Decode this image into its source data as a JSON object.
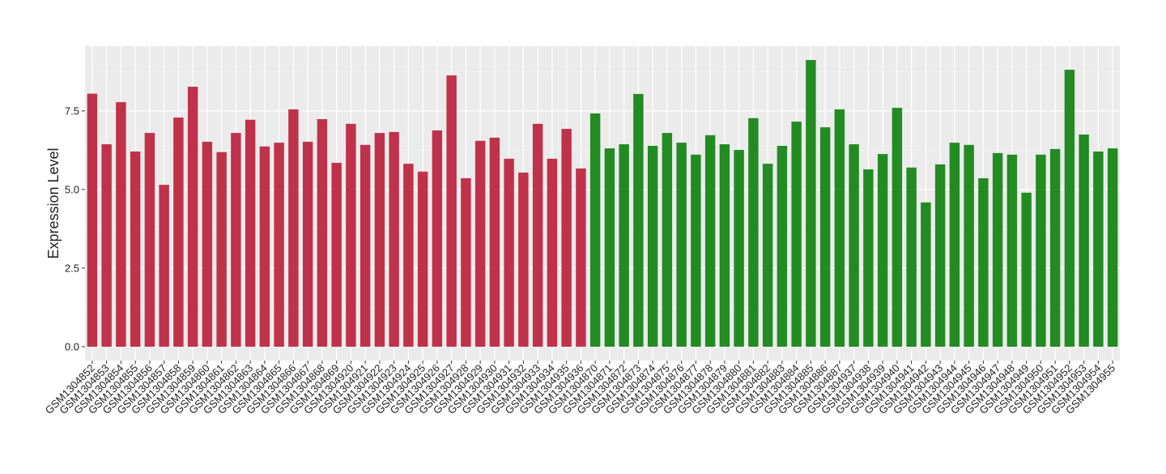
{
  "chart_data": {
    "type": "bar",
    "y_label": "Expression Level",
    "categories": [
      "GSM1304852",
      "GSM1304853",
      "GSM1304854",
      "GSM1304855",
      "GSM1304856",
      "GSM1304857",
      "GSM1304858",
      "GSM1304859",
      "GSM1304860",
      "GSM1304861",
      "GSM1304862",
      "GSM1304863",
      "GSM1304864",
      "GSM1304865",
      "GSM1304866",
      "GSM1304867",
      "GSM1304868",
      "GSM1304869",
      "GSM1304920",
      "GSM1304921",
      "GSM1304922",
      "GSM1304923",
      "GSM1304924",
      "GSM1304925",
      "GSM1304926",
      "GSM1304927",
      "GSM1304928",
      "GSM1304929",
      "GSM1304930",
      "GSM1304931",
      "GSM1304932",
      "GSM1304933",
      "GSM1304934",
      "GSM1304935",
      "GSM1304936",
      "GSM1304870",
      "GSM1304871",
      "GSM1304872",
      "GSM1304873",
      "GSM1304874",
      "GSM1304875",
      "GSM1304876",
      "GSM1304877",
      "GSM1304878",
      "GSM1304879",
      "GSM1304880",
      "GSM1304881",
      "GSM1304882",
      "GSM1304883",
      "GSM1304884",
      "GSM1304885",
      "GSM1304886",
      "GSM1304887",
      "GSM1304937",
      "GSM1304938",
      "GSM1304939",
      "GSM1304940",
      "GSM1304941",
      "GSM1304942",
      "GSM1304943",
      "GSM1304944",
      "GSM1304945",
      "GSM1304946",
      "GSM1304947",
      "GSM1304948",
      "GSM1304949",
      "GSM1304950",
      "GSM1304951",
      "GSM1304952",
      "GSM1304953",
      "GSM1304954",
      "GSM1304955"
    ],
    "values": [
      8.05,
      6.44,
      7.78,
      6.21,
      6.8,
      5.15,
      7.29,
      8.27,
      6.52,
      6.19,
      6.8,
      7.22,
      6.37,
      6.49,
      7.55,
      6.52,
      7.24,
      5.85,
      7.09,
      6.42,
      6.8,
      6.83,
      5.82,
      5.57,
      6.88,
      8.63,
      5.36,
      6.55,
      6.65,
      5.98,
      5.54,
      7.09,
      5.98,
      6.93,
      5.67,
      7.42,
      6.31,
      6.44,
      8.04,
      6.39,
      6.8,
      6.49,
      6.11,
      6.73,
      6.44,
      6.26,
      7.27,
      5.82,
      6.39,
      7.16,
      9.12,
      6.98,
      7.55,
      6.44,
      5.64,
      6.13,
      7.6,
      5.7,
      4.59,
      5.8,
      6.49,
      6.42,
      5.36,
      6.16,
      6.11,
      4.9,
      6.11,
      6.29,
      8.81,
      6.75,
      6.21,
      6.31
    ],
    "colors": [
      "#c0314a",
      "#c0314a",
      "#c0314a",
      "#c0314a",
      "#c0314a",
      "#c0314a",
      "#c0314a",
      "#c0314a",
      "#c0314a",
      "#c0314a",
      "#c0314a",
      "#c0314a",
      "#c0314a",
      "#c0314a",
      "#c0314a",
      "#c0314a",
      "#c0314a",
      "#c0314a",
      "#c0314a",
      "#c0314a",
      "#c0314a",
      "#c0314a",
      "#c0314a",
      "#c0314a",
      "#c0314a",
      "#c0314a",
      "#c0314a",
      "#c0314a",
      "#c0314a",
      "#c0314a",
      "#c0314a",
      "#c0314a",
      "#c0314a",
      "#c0314a",
      "#c0314a",
      "#228b22",
      "#228b22",
      "#228b22",
      "#228b22",
      "#228b22",
      "#228b22",
      "#228b22",
      "#228b22",
      "#228b22",
      "#228b22",
      "#228b22",
      "#228b22",
      "#228b22",
      "#228b22",
      "#228b22",
      "#228b22",
      "#228b22",
      "#228b22",
      "#228b22",
      "#228b22",
      "#228b22",
      "#228b22",
      "#228b22",
      "#228b22",
      "#228b22",
      "#228b22",
      "#228b22",
      "#228b22",
      "#228b22",
      "#228b22",
      "#228b22",
      "#228b22",
      "#228b22",
      "#228b22",
      "#228b22",
      "#228b22",
      "#228b22"
    ],
    "ylim": [
      -0.44,
      9.56
    ],
    "yticks": [
      {
        "value": 0,
        "label": "0.0"
      },
      2.5,
      {
        "value": 5,
        "label": "5.0"
      },
      7.5
    ],
    "grid": true
  }
}
